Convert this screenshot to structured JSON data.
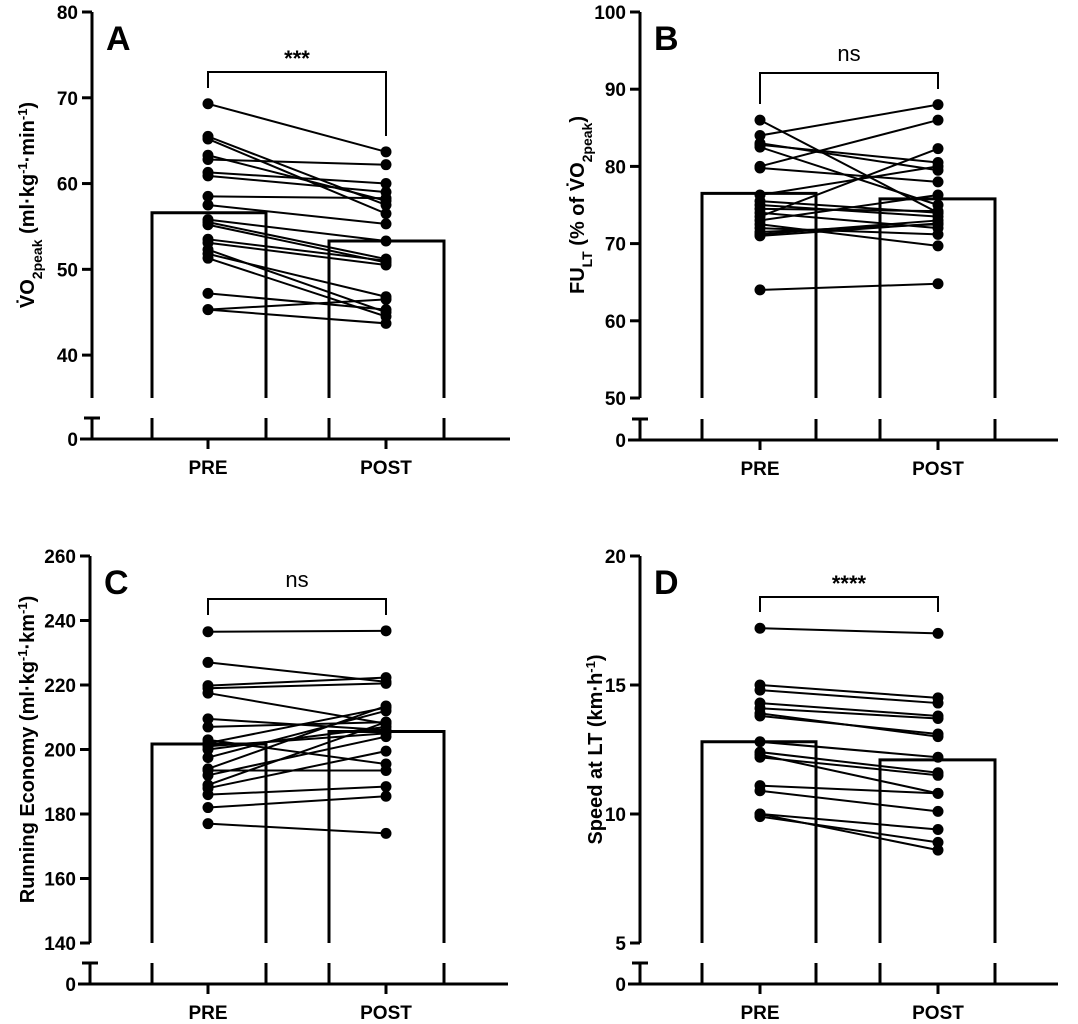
{
  "chart_data": [
    {
      "type": "bar",
      "panel": "A",
      "categories": [
        "PRE",
        "POST"
      ],
      "ylabel_parts": [
        {
          "t": "V̇O"
        },
        {
          "t": "2peak",
          "s": "sub"
        },
        {
          "t": " (ml·kg"
        },
        {
          "t": "-1",
          "s": "sup"
        },
        {
          "t": "·min"
        },
        {
          "t": "-1",
          "s": "sup"
        },
        {
          "t": ")"
        }
      ],
      "yticks": [
        0,
        40,
        50,
        60,
        70,
        80
      ],
      "ylim": [
        35,
        80
      ],
      "axis_break": true,
      "bar_values": [
        56.6,
        53.3
      ],
      "significance": "***",
      "paired_values": [
        [
          69.3,
          63.7
        ],
        [
          65.5,
          57.5
        ],
        [
          65.2,
          56.5
        ],
        [
          63.3,
          58.0
        ],
        [
          62.8,
          62.2
        ],
        [
          61.3,
          60.0
        ],
        [
          60.9,
          59.0
        ],
        [
          58.5,
          58.3
        ],
        [
          57.5,
          55.3
        ],
        [
          55.8,
          53.3
        ],
        [
          55.5,
          51.2
        ],
        [
          55.2,
          50.8
        ],
        [
          53.5,
          51.0
        ],
        [
          53.1,
          50.5
        ],
        [
          52.3,
          45.0
        ],
        [
          51.8,
          46.8
        ],
        [
          51.3,
          44.5
        ],
        [
          47.2,
          45.3
        ],
        [
          45.3,
          46.5
        ],
        [
          45.3,
          43.7
        ]
      ],
      "color": "#000000"
    },
    {
      "type": "bar",
      "panel": "B",
      "categories": [
        "PRE",
        "POST"
      ],
      "ylabel_parts": [
        {
          "t": "FU"
        },
        {
          "t": "LT",
          "s": "sub"
        },
        {
          "t": "  (% of V̇O"
        },
        {
          "t": "2peak",
          "s": "sub"
        },
        {
          "t": ")"
        }
      ],
      "yticks": [
        0,
        50,
        60,
        70,
        80,
        90,
        100
      ],
      "ylim": [
        50,
        100
      ],
      "axis_break": true,
      "bar_values": [
        76.5,
        75.8
      ],
      "significance": "ns",
      "paired_values": [
        [
          86.0,
          74.0
        ],
        [
          84.0,
          88.0
        ],
        [
          83.0,
          79.5
        ],
        [
          82.8,
          80.5
        ],
        [
          82.5,
          75.0
        ],
        [
          80.0,
          86.0
        ],
        [
          79.8,
          78.0
        ],
        [
          76.3,
          80.0
        ],
        [
          75.5,
          74.0
        ],
        [
          75.0,
          73.5
        ],
        [
          74.5,
          74.2
        ],
        [
          74.0,
          72.0
        ],
        [
          73.5,
          82.3
        ],
        [
          73.0,
          76.3
        ],
        [
          72.5,
          69.7
        ],
        [
          72.0,
          71.2
        ],
        [
          71.5,
          72.5
        ],
        [
          71.2,
          73.0
        ],
        [
          71.0,
          72.6
        ],
        [
          64.0,
          64.8
        ]
      ],
      "color": "#000000"
    },
    {
      "type": "bar",
      "panel": "C",
      "categories": [
        "PRE",
        "POST"
      ],
      "ylabel_parts": [
        {
          "t": "Running Economy  (ml·kg"
        },
        {
          "t": "-1",
          "s": "sup"
        },
        {
          "t": "·km"
        },
        {
          "t": "-1",
          "s": "sup"
        },
        {
          "t": ")"
        }
      ],
      "yticks": [
        0,
        140,
        160,
        180,
        200,
        220,
        240,
        260
      ],
      "ylim": [
        140,
        260
      ],
      "axis_break": true,
      "bar_values": [
        201.7,
        205.6
      ],
      "significance": "ns",
      "paired_values": [
        [
          236.5,
          236.8
        ],
        [
          227.0,
          221.0
        ],
        [
          219.8,
          222.3
        ],
        [
          219.0,
          220.5
        ],
        [
          217.5,
          208.0
        ],
        [
          209.5,
          206.0
        ],
        [
          207.0,
          208.5
        ],
        [
          203.0,
          195.5
        ],
        [
          202.0,
          213.0
        ],
        [
          201.0,
          205.0
        ],
        [
          200.0,
          207.0
        ],
        [
          197.5,
          212.0
        ],
        [
          194.0,
          213.5
        ],
        [
          193.5,
          193.5
        ],
        [
          192.0,
          204.0
        ],
        [
          189.0,
          208.5
        ],
        [
          188.0,
          199.5
        ],
        [
          186.0,
          188.5
        ],
        [
          182.0,
          185.5
        ],
        [
          177.0,
          174.0
        ]
      ],
      "color": "#000000"
    },
    {
      "type": "bar",
      "panel": "D",
      "categories": [
        "PRE",
        "POST"
      ],
      "ylabel_parts": [
        {
          "t": "Speed at LT (km·h"
        },
        {
          "t": "-1",
          "s": "sup"
        },
        {
          "t": ")"
        }
      ],
      "yticks": [
        0,
        5,
        10,
        15,
        20
      ],
      "ylim": [
        5,
        20
      ],
      "axis_break": true,
      "bar_values": [
        12.8,
        12.1
      ],
      "significance": "****",
      "paired_values": [
        [
          17.2,
          17.0
        ],
        [
          15.0,
          14.5
        ],
        [
          14.8,
          14.3
        ],
        [
          14.3,
          13.8
        ],
        [
          14.1,
          13.7
        ],
        [
          13.9,
          13.0
        ],
        [
          13.8,
          13.1
        ],
        [
          12.8,
          12.2
        ],
        [
          12.4,
          11.6
        ],
        [
          12.3,
          10.8
        ],
        [
          12.2,
          11.5
        ],
        [
          11.1,
          10.8
        ],
        [
          10.9,
          10.1
        ],
        [
          10.0,
          9.4
        ],
        [
          9.9,
          8.9
        ],
        [
          10.0,
          8.6
        ]
      ],
      "color": "#000000"
    }
  ]
}
